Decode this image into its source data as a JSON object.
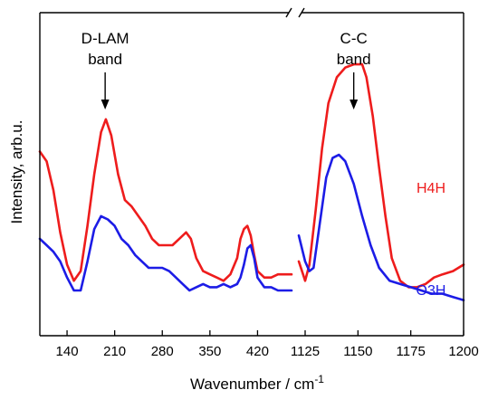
{
  "chart_data": {
    "type": "line",
    "xlabel": "Wavenumber / cm",
    "xlabel_sup": "-1",
    "ylabel": "Intensity, arb.u.",
    "grid": false,
    "legend": "inline labels at right of each curve",
    "axis_break": true,
    "panels": [
      {
        "xlim": [
          100,
          470
        ],
        "ticks": [
          140,
          210,
          280,
          350,
          420
        ]
      },
      {
        "xlim": [
          1122,
          1200
        ],
        "ticks": [
          1125,
          1150,
          1175,
          1200
        ]
      }
    ],
    "yticks_shown": false,
    "annotations": [
      {
        "line1": "D-LAM",
        "line2": "band",
        "panel": 0,
        "x": 196
      },
      {
        "line1": "C-C",
        "line2": "band",
        "panel": 1,
        "x": 1148
      }
    ],
    "series": [
      {
        "name": "H4H",
        "color": "#ee1c1c",
        "panel_points": [
          [
            [
              100,
              0.57
            ],
            [
              110,
              0.54
            ],
            [
              120,
              0.45
            ],
            [
              130,
              0.32
            ],
            [
              140,
              0.22
            ],
            [
              150,
              0.17
            ],
            [
              160,
              0.2
            ],
            [
              170,
              0.34
            ],
            [
              180,
              0.5
            ],
            [
              190,
              0.63
            ],
            [
              197,
              0.67
            ],
            [
              205,
              0.62
            ],
            [
              215,
              0.5
            ],
            [
              225,
              0.42
            ],
            [
              235,
              0.4
            ],
            [
              245,
              0.37
            ],
            [
              255,
              0.34
            ],
            [
              265,
              0.3
            ],
            [
              275,
              0.28
            ],
            [
              285,
              0.28
            ],
            [
              295,
              0.28
            ],
            [
              305,
              0.3
            ],
            [
              315,
              0.32
            ],
            [
              322,
              0.3
            ],
            [
              330,
              0.24
            ],
            [
              340,
              0.2
            ],
            [
              350,
              0.19
            ],
            [
              360,
              0.18
            ],
            [
              370,
              0.17
            ],
            [
              380,
              0.19
            ],
            [
              390,
              0.24
            ],
            [
              395,
              0.3
            ],
            [
              400,
              0.33
            ],
            [
              405,
              0.34
            ],
            [
              410,
              0.31
            ],
            [
              415,
              0.25
            ],
            [
              420,
              0.2
            ],
            [
              430,
              0.18
            ],
            [
              440,
              0.18
            ],
            [
              450,
              0.19
            ],
            [
              460,
              0.19
            ],
            [
              470,
              0.19
            ]
          ],
          [
            [
              1122,
              0.23
            ],
            [
              1124,
              0.19
            ],
            [
              1125,
              0.17
            ],
            [
              1127,
              0.22
            ],
            [
              1130,
              0.39
            ],
            [
              1133,
              0.58
            ],
            [
              1136,
              0.72
            ],
            [
              1140,
              0.8
            ],
            [
              1144,
              0.83
            ],
            [
              1148,
              0.84
            ],
            [
              1152,
              0.84
            ],
            [
              1154,
              0.8
            ],
            [
              1157,
              0.68
            ],
            [
              1160,
              0.52
            ],
            [
              1163,
              0.37
            ],
            [
              1166,
              0.24
            ],
            [
              1170,
              0.17
            ],
            [
              1174,
              0.15
            ],
            [
              1178,
              0.15
            ],
            [
              1182,
              0.16
            ],
            [
              1186,
              0.18
            ],
            [
              1190,
              0.19
            ],
            [
              1195,
              0.2
            ],
            [
              1200,
              0.22
            ]
          ]
        ]
      },
      {
        "name": "O3H",
        "color": "#1c1ce6",
        "panel_points": [
          [
            [
              100,
              0.3
            ],
            [
              110,
              0.28
            ],
            [
              120,
              0.26
            ],
            [
              130,
              0.23
            ],
            [
              140,
              0.18
            ],
            [
              150,
              0.14
            ],
            [
              160,
              0.14
            ],
            [
              170,
              0.23
            ],
            [
              180,
              0.33
            ],
            [
              190,
              0.37
            ],
            [
              200,
              0.36
            ],
            [
              210,
              0.34
            ],
            [
              220,
              0.3
            ],
            [
              230,
              0.28
            ],
            [
              240,
              0.25
            ],
            [
              250,
              0.23
            ],
            [
              260,
              0.21
            ],
            [
              270,
              0.21
            ],
            [
              280,
              0.21
            ],
            [
              290,
              0.2
            ],
            [
              300,
              0.18
            ],
            [
              310,
              0.16
            ],
            [
              320,
              0.14
            ],
            [
              330,
              0.15
            ],
            [
              340,
              0.16
            ],
            [
              350,
              0.15
            ],
            [
              360,
              0.15
            ],
            [
              370,
              0.16
            ],
            [
              380,
              0.15
            ],
            [
              390,
              0.16
            ],
            [
              395,
              0.18
            ],
            [
              400,
              0.22
            ],
            [
              405,
              0.27
            ],
            [
              410,
              0.28
            ],
            [
              415,
              0.24
            ],
            [
              420,
              0.18
            ],
            [
              430,
              0.15
            ],
            [
              440,
              0.15
            ],
            [
              450,
              0.14
            ],
            [
              460,
              0.14
            ],
            [
              470,
              0.14
            ]
          ],
          [
            [
              1122,
              0.31
            ],
            [
              1125,
              0.23
            ],
            [
              1127,
              0.2
            ],
            [
              1129,
              0.21
            ],
            [
              1132,
              0.35
            ],
            [
              1135,
              0.49
            ],
            [
              1138,
              0.55
            ],
            [
              1141,
              0.56
            ],
            [
              1144,
              0.54
            ],
            [
              1148,
              0.47
            ],
            [
              1152,
              0.37
            ],
            [
              1156,
              0.28
            ],
            [
              1160,
              0.21
            ],
            [
              1165,
              0.17
            ],
            [
              1170,
              0.16
            ],
            [
              1175,
              0.15
            ],
            [
              1180,
              0.14
            ],
            [
              1185,
              0.13
            ],
            [
              1190,
              0.13
            ],
            [
              1195,
              0.12
            ],
            [
              1200,
              0.11
            ]
          ]
        ]
      }
    ]
  }
}
